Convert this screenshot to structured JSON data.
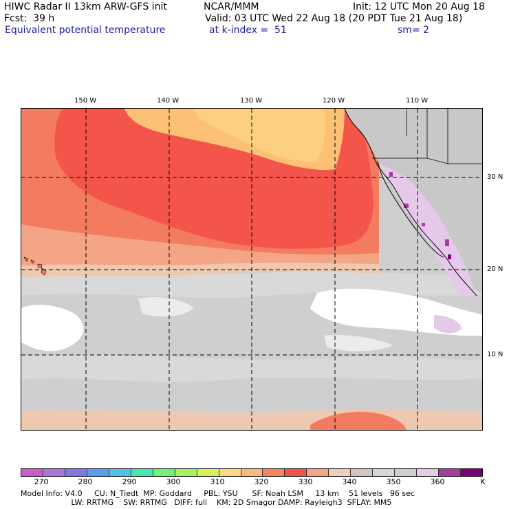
{
  "header": {
    "line1_left": "HIWC Radar II 13km ARW-GFS init",
    "line1_mid": "NCAR/MMM",
    "line1_right": "Init: 12 UTC Mon 20 Aug 18",
    "line2_left": "Fcst:  39 h",
    "line2_right": "Valid: 03 UTC Wed 22 Aug 18 (20 PDT Tue 21 Aug 18)",
    "field_name": "Equivalent potential temperature",
    "level": "at k-index =  51",
    "smoothing": "sm= 2"
  },
  "map": {
    "lon_ticks": [
      "150 W",
      "140 W",
      "130 W",
      "120 W",
      "110 W"
    ],
    "lat_ticks": [
      "30 N",
      "20 N",
      "10 N"
    ],
    "colors": {
      "gray": "#cfcfcf",
      "light_gray": "#dcdcdc",
      "white": "#ffffff",
      "salmon": "#f3a585",
      "peach": "#efc8b0",
      "red": "#f4554b",
      "orange_red": "#f37b5f",
      "light_orange": "#fcc174",
      "yellow_orange": "#fdd081",
      "lavender": "#e6c9ea",
      "purple": "#a43d9f"
    }
  },
  "colorbar": {
    "colors": [
      "#cc5ccc",
      "#a878d6",
      "#7f79e8",
      "#5e9cf2",
      "#4ec3e6",
      "#49e6b2",
      "#71f07a",
      "#a7f064",
      "#d7f060",
      "#fbd982",
      "#fcb97a",
      "#f6845e",
      "#f2544a",
      "#f3a585",
      "#efcfb8",
      "#d2c7c0",
      "#d6d6d6",
      "#cfcfcf",
      "#e8cbe8",
      "#a43d9f",
      "#7b0076"
    ],
    "labels": [
      "270",
      "280",
      "290",
      "300",
      "310",
      "320",
      "330",
      "340",
      "350",
      "360",
      "K"
    ]
  },
  "footer": {
    "line1": "Model Info: V4.0     CU: N_Tiedt  MP: Goddard     PBL: YSU      SF: Noah LSM     13 km    51 levels   96 sec",
    "line2": "                     LW: RRTMG    SW: RRTMG   DIFF: full    KM: 2D Smagor DAMP: Rayleigh3  SFLAY: MM5"
  }
}
